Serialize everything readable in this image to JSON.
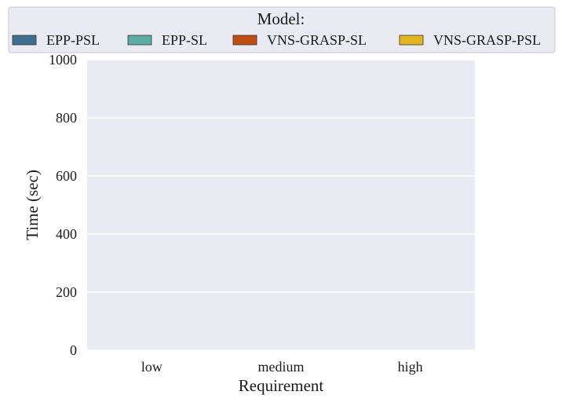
{
  "chart_data": {
    "type": "bar",
    "title": "",
    "xlabel": "Requirement",
    "ylabel": "Time (sec)",
    "categories": [
      "low",
      "medium",
      "high"
    ],
    "ylim": [
      0,
      1000
    ],
    "yticks": [
      0,
      200,
      400,
      600,
      800,
      1000
    ],
    "grid": true,
    "legend": {
      "title": "Model:",
      "placement": "top-center",
      "entries": [
        {
          "name": "EPP-PSL",
          "color": "#3e6f8e"
        },
        {
          "name": "EPP-SL",
          "color": "#5aada0"
        },
        {
          "name": "VNS-GRASP-SL",
          "color": "#c04e13"
        },
        {
          "name": "VNS-GRASP-PSL",
          "color": "#e3b51f"
        }
      ]
    },
    "series": [
      {
        "name": "EPP-PSL",
        "values": [
          null,
          null,
          null
        ]
      },
      {
        "name": "EPP-SL",
        "values": [
          null,
          null,
          null
        ]
      },
      {
        "name": "VNS-GRASP-SL",
        "values": [
          null,
          null,
          null
        ]
      },
      {
        "name": "VNS-GRASP-PSL",
        "values": [
          null,
          null,
          null
        ]
      }
    ]
  },
  "colors": {
    "plot_background": "#eaeaf2",
    "grid": "#ffffff",
    "legend_background": "#eaeaf2",
    "legend_border": "#c8c8d0"
  }
}
